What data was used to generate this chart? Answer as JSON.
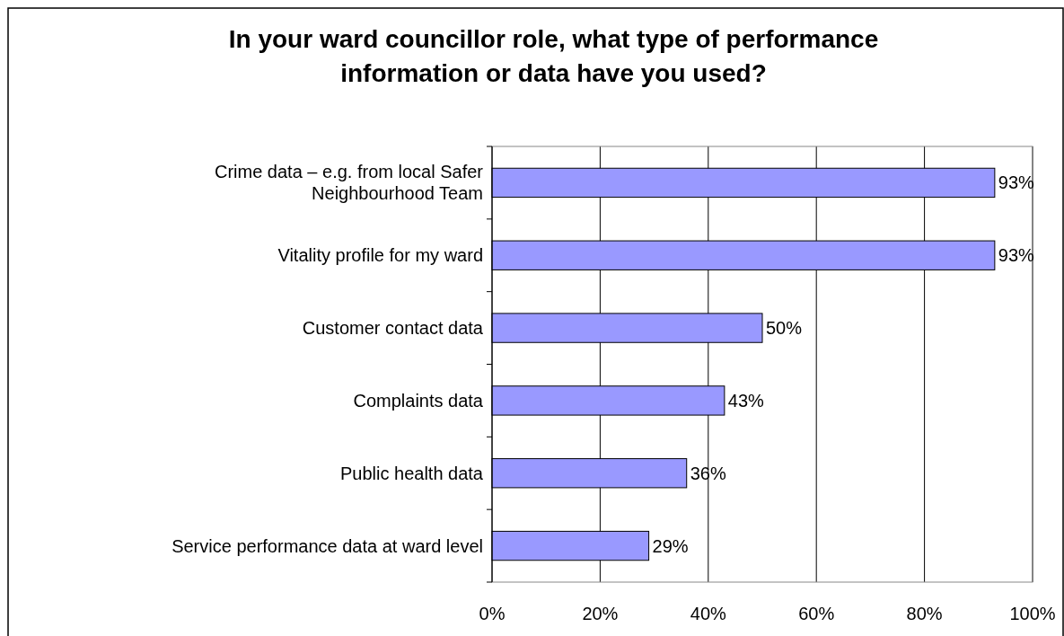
{
  "chart_data": {
    "type": "bar",
    "orientation": "horizontal",
    "title": "In your ward councillor role, what type of performance information or data have you used?",
    "categories": [
      "Crime data – e.g. from local Safer Neighbourhood Team",
      "Vitality profile for my ward",
      "Customer contact data",
      "Complaints data",
      "Public health data",
      "Service performance data at ward level"
    ],
    "values": [
      93,
      93,
      50,
      43,
      36,
      29
    ],
    "value_labels": [
      "93%",
      "93%",
      "50%",
      "43%",
      "36%",
      "29%"
    ],
    "color": "#9999ff",
    "xlim": [
      0,
      100
    ],
    "xticks": [
      {
        "value": 0,
        "label": "0%"
      },
      {
        "value": 20,
        "label": "20%"
      },
      {
        "value": 40,
        "label": "40%"
      },
      {
        "value": 60,
        "label": "60%"
      },
      {
        "value": 80,
        "label": "80%"
      },
      {
        "value": 100,
        "label": "100%"
      }
    ],
    "grid": "x"
  }
}
